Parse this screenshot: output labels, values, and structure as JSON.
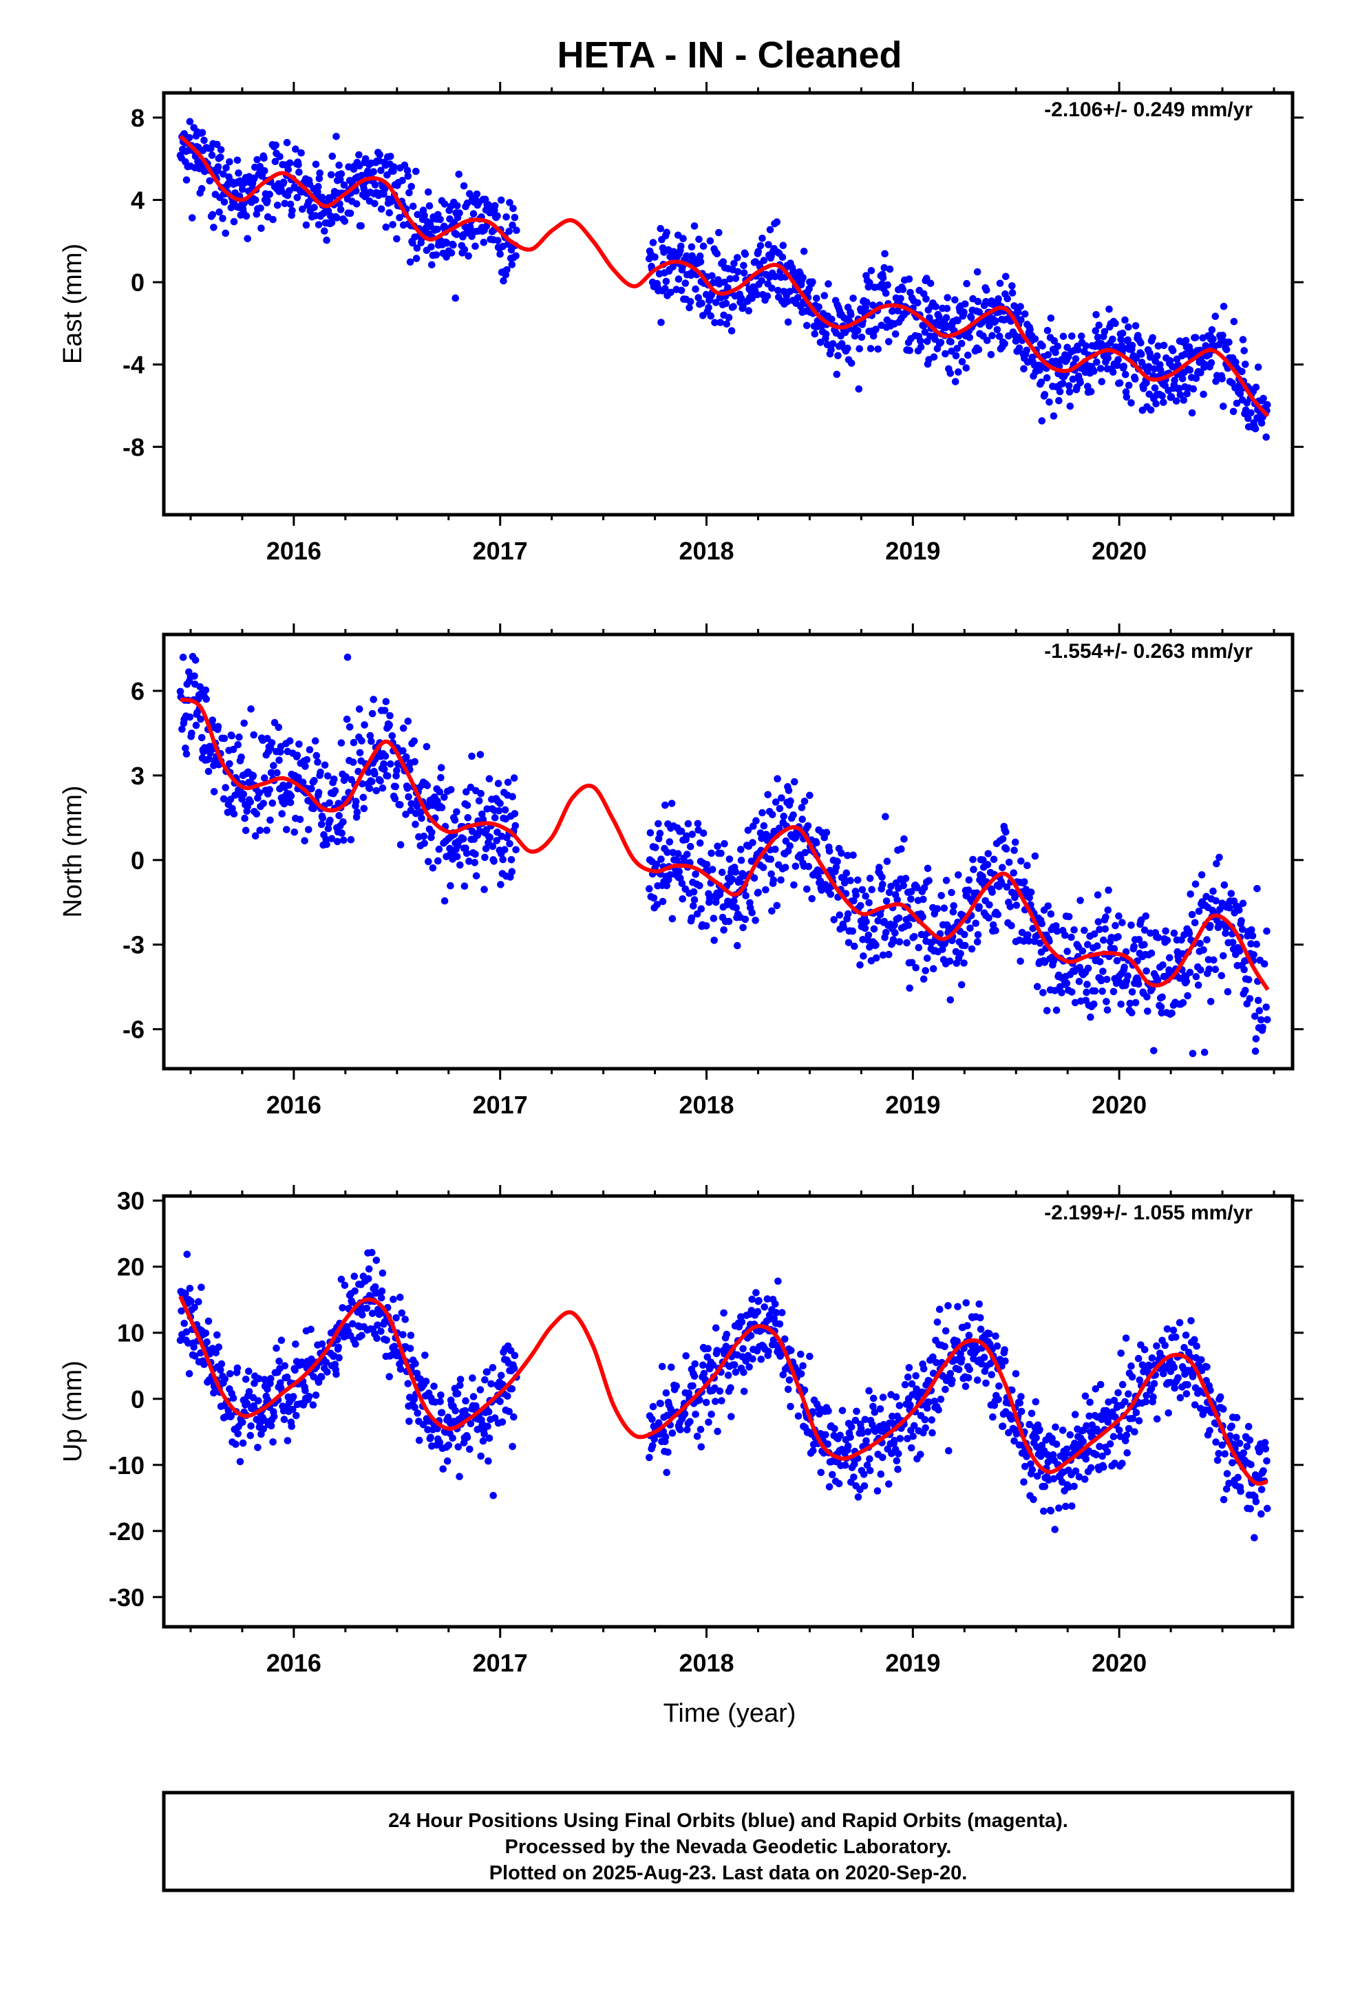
{
  "title": "HETA  - IN - Cleaned",
  "x_axis_label": "Time (year)",
  "footer": {
    "line1": "24 Hour Positions Using Final Orbits (blue) and Rapid Orbits (magenta).",
    "line2": "Processed by the Nevada Geodetic Laboratory.",
    "line3": "Plotted on 2025-Aug-23. Last data on 2020-Sep-20."
  },
  "colors": {
    "points": "#0000ff",
    "fit": "#ff0000",
    "axes": "#000000"
  },
  "chart_data": [
    {
      "type": "scatter",
      "ylabel": "East (mm)",
      "rate_label": "-2.106+/- 0.249 mm/yr",
      "xlim": [
        2015.37,
        2020.84
      ],
      "ylim": [
        -11.3,
        9.2
      ],
      "xticks": [
        2016,
        2017,
        2018,
        2019,
        2020
      ],
      "yticks": [
        -8,
        -4,
        0,
        4,
        8
      ],
      "gap": [
        2017.08,
        2017.72
      ],
      "fit_series": {
        "name": "model",
        "x": [
          2015.45,
          2015.55,
          2015.65,
          2015.75,
          2015.85,
          2015.95,
          2016.05,
          2016.15,
          2016.25,
          2016.35,
          2016.45,
          2016.55,
          2016.65,
          2016.75,
          2016.85,
          2016.95,
          2017.05,
          2017.15,
          2017.25,
          2017.35,
          2017.45,
          2017.55,
          2017.65,
          2017.75,
          2017.85,
          2017.95,
          2018.05,
          2018.15,
          2018.25,
          2018.35,
          2018.45,
          2018.55,
          2018.65,
          2018.75,
          2018.85,
          2018.95,
          2019.05,
          2019.15,
          2019.25,
          2019.35,
          2019.45,
          2019.55,
          2019.65,
          2019.75,
          2019.85,
          2019.95,
          2020.05,
          2020.15,
          2020.25,
          2020.35,
          2020.45,
          2020.55,
          2020.65,
          2020.72
        ],
        "y": [
          7.1,
          6.1,
          4.6,
          4.0,
          4.8,
          5.3,
          4.6,
          3.7,
          4.3,
          5.0,
          4.8,
          3.2,
          2.1,
          2.5,
          3.0,
          2.9,
          2.0,
          1.6,
          2.5,
          3.0,
          2.0,
          0.6,
          -0.2,
          0.6,
          1.0,
          0.6,
          -0.5,
          -0.3,
          0.5,
          0.8,
          -0.4,
          -1.7,
          -2.2,
          -1.8,
          -1.2,
          -1.2,
          -1.8,
          -2.6,
          -2.3,
          -1.6,
          -1.3,
          -2.8,
          -4.0,
          -4.3,
          -3.7,
          -3.3,
          -3.8,
          -4.7,
          -4.5,
          -3.8,
          -3.3,
          -4.2,
          -5.7,
          -6.5
        ]
      },
      "point_series": {
        "name": "final",
        "amplitude": 1.15,
        "noise_seed": 11,
        "note": "observation scatter around the model curve; daily solutions"
      }
    },
    {
      "type": "scatter",
      "ylabel": "North (mm)",
      "rate_label": "-1.554+/- 0.263 mm/yr",
      "xlim": [
        2015.37,
        2020.84
      ],
      "ylim": [
        -7.4,
        8.0
      ],
      "xticks": [
        2016,
        2017,
        2018,
        2019,
        2020
      ],
      "yticks": [
        -6,
        -3,
        0,
        3,
        6
      ],
      "gap": [
        2017.08,
        2017.72
      ],
      "fit_series": {
        "name": "model",
        "x": [
          2015.45,
          2015.55,
          2015.65,
          2015.75,
          2015.85,
          2015.95,
          2016.05,
          2016.15,
          2016.25,
          2016.35,
          2016.45,
          2016.55,
          2016.65,
          2016.75,
          2016.85,
          2016.95,
          2017.05,
          2017.15,
          2017.25,
          2017.35,
          2017.45,
          2017.55,
          2017.65,
          2017.75,
          2017.85,
          2017.95,
          2018.05,
          2018.15,
          2018.25,
          2018.35,
          2018.45,
          2018.55,
          2018.65,
          2018.75,
          2018.85,
          2018.95,
          2019.05,
          2019.15,
          2019.25,
          2019.35,
          2019.45,
          2019.55,
          2019.65,
          2019.75,
          2019.85,
          2019.95,
          2020.05,
          2020.15,
          2020.25,
          2020.35,
          2020.45,
          2020.55,
          2020.65,
          2020.72
        ],
        "y": [
          5.7,
          5.4,
          3.5,
          2.6,
          2.7,
          2.9,
          2.5,
          1.8,
          2.0,
          3.3,
          4.2,
          3.1,
          1.6,
          1.0,
          1.2,
          1.3,
          1.0,
          0.3,
          0.8,
          2.2,
          2.6,
          1.4,
          0.0,
          -0.4,
          -0.2,
          -0.3,
          -0.8,
          -1.2,
          0.0,
          0.9,
          1.1,
          -0.1,
          -1.2,
          -1.9,
          -1.7,
          -1.6,
          -2.3,
          -2.8,
          -2.1,
          -1.0,
          -0.5,
          -1.6,
          -3.0,
          -3.6,
          -3.4,
          -3.3,
          -3.5,
          -4.4,
          -4.2,
          -3.1,
          -2.0,
          -2.4,
          -3.8,
          -4.6
        ]
      },
      "point_series": {
        "name": "final",
        "amplitude": 1.2,
        "noise_seed": 23,
        "note": "observation scatter around the model curve; daily solutions"
      }
    },
    {
      "type": "scatter",
      "ylabel": "Up (mm)",
      "rate_label": "-2.199+/- 1.055 mm/yr",
      "xlim": [
        2015.37,
        2020.84
      ],
      "ylim": [
        -34.5,
        30.7
      ],
      "xticks": [
        2016,
        2017,
        2018,
        2019,
        2020
      ],
      "yticks": [
        -30,
        -20,
        -10,
        0,
        10,
        20,
        30
      ],
      "gap": [
        2017.08,
        2017.72
      ],
      "fit_series": {
        "name": "model",
        "x": [
          2015.45,
          2015.55,
          2015.65,
          2015.75,
          2015.85,
          2015.95,
          2016.05,
          2016.15,
          2016.25,
          2016.35,
          2016.45,
          2016.55,
          2016.65,
          2016.75,
          2016.85,
          2016.95,
          2017.05,
          2017.15,
          2017.25,
          2017.35,
          2017.45,
          2017.55,
          2017.65,
          2017.75,
          2017.85,
          2017.95,
          2018.05,
          2018.15,
          2018.25,
          2018.35,
          2018.45,
          2018.55,
          2018.65,
          2018.75,
          2018.85,
          2018.95,
          2019.05,
          2019.15,
          2019.25,
          2019.35,
          2019.45,
          2019.55,
          2019.65,
          2019.75,
          2019.85,
          2019.95,
          2020.05,
          2020.15,
          2020.25,
          2020.35,
          2020.45,
          2020.55,
          2020.65,
          2020.72
        ],
        "y": [
          15.5,
          8.5,
          1.0,
          -2.5,
          -1.5,
          1.0,
          3.5,
          7.0,
          12.0,
          15.0,
          13.0,
          5.0,
          -2.0,
          -4.5,
          -3.0,
          -0.5,
          2.5,
          6.5,
          11.0,
          13.0,
          8.0,
          -1.0,
          -5.5,
          -5.0,
          -2.5,
          0.5,
          4.0,
          8.5,
          11.0,
          9.0,
          1.5,
          -6.5,
          -9.0,
          -8.0,
          -6.0,
          -3.5,
          0.0,
          5.0,
          8.5,
          8.0,
          2.0,
          -7.0,
          -11.0,
          -9.5,
          -7.0,
          -4.5,
          -1.5,
          3.5,
          6.5,
          5.5,
          -1.0,
          -8.0,
          -12.5,
          -12.5
        ]
      },
      "point_series": {
        "name": "final",
        "amplitude": 4.2,
        "noise_seed": 37,
        "note": "observation scatter around the model curve; daily solutions"
      }
    }
  ]
}
